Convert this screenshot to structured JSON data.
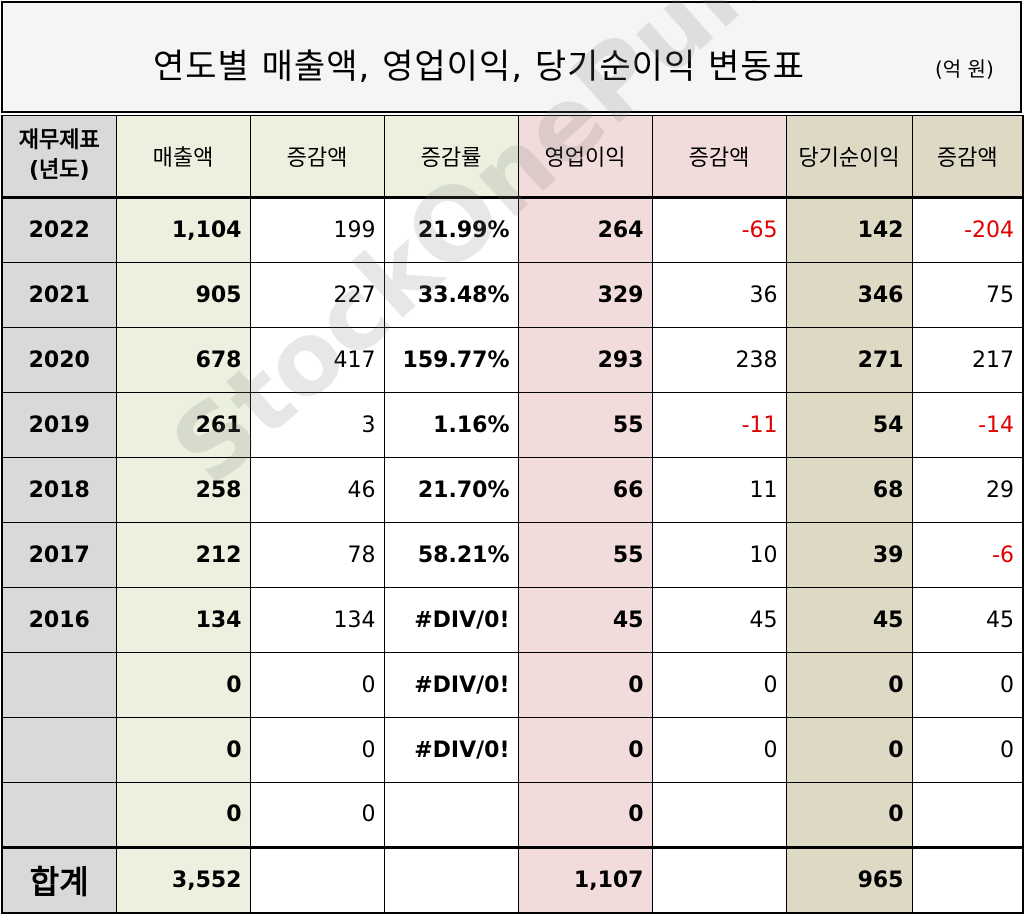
{
  "title": "연도별 매출액, 영업이익, 당기순이익 변동표",
  "unit": "(억 원)",
  "watermark": "StockOnePunch",
  "headers": {
    "year": "재무제표\n(년도)",
    "revenue": "매출액",
    "revenue_change": "증감액",
    "revenue_rate": "증감률",
    "op_income": "영업이익",
    "op_change": "증감액",
    "net_income": "당기순이익",
    "net_change": "증감액"
  },
  "rows": [
    {
      "year": "2022",
      "revenue": "1,104",
      "revenue_change": "199",
      "revenue_rate": "21.99%",
      "op_income": "264",
      "op_change": "-65",
      "net_income": "142",
      "net_change": "-204"
    },
    {
      "year": "2021",
      "revenue": "905",
      "revenue_change": "227",
      "revenue_rate": "33.48%",
      "op_income": "329",
      "op_change": "36",
      "net_income": "346",
      "net_change": "75"
    },
    {
      "year": "2020",
      "revenue": "678",
      "revenue_change": "417",
      "revenue_rate": "159.77%",
      "op_income": "293",
      "op_change": "238",
      "net_income": "271",
      "net_change": "217"
    },
    {
      "year": "2019",
      "revenue": "261",
      "revenue_change": "3",
      "revenue_rate": "1.16%",
      "op_income": "55",
      "op_change": "-11",
      "net_income": "54",
      "net_change": "-14"
    },
    {
      "year": "2018",
      "revenue": "258",
      "revenue_change": "46",
      "revenue_rate": "21.70%",
      "op_income": "66",
      "op_change": "11",
      "net_income": "68",
      "net_change": "29"
    },
    {
      "year": "2017",
      "revenue": "212",
      "revenue_change": "78",
      "revenue_rate": "58.21%",
      "op_income": "55",
      "op_change": "10",
      "net_income": "39",
      "net_change": "-6"
    },
    {
      "year": "2016",
      "revenue": "134",
      "revenue_change": "134",
      "revenue_rate": "#DIV/0!",
      "op_income": "45",
      "op_change": "45",
      "net_income": "45",
      "net_change": "45"
    },
    {
      "year": "",
      "revenue": "0",
      "revenue_change": "0",
      "revenue_rate": "#DIV/0!",
      "op_income": "0",
      "op_change": "0",
      "net_income": "0",
      "net_change": "0"
    },
    {
      "year": "",
      "revenue": "0",
      "revenue_change": "0",
      "revenue_rate": "#DIV/0!",
      "op_income": "0",
      "op_change": "0",
      "net_income": "0",
      "net_change": "0"
    },
    {
      "year": "",
      "revenue": "0",
      "revenue_change": "0",
      "revenue_rate": "",
      "op_income": "0",
      "op_change": "",
      "net_income": "0",
      "net_change": ""
    }
  ],
  "total": {
    "label": "합계",
    "revenue": "3,552",
    "op_income": "1,107",
    "net_income": "965"
  },
  "colors": {
    "year_col": "#d9d9d9",
    "revenue_cols": "#ebf1de",
    "op_cols": "#f2dcdb",
    "net_cols": "#ddd9c4",
    "negative": "#e00000"
  }
}
